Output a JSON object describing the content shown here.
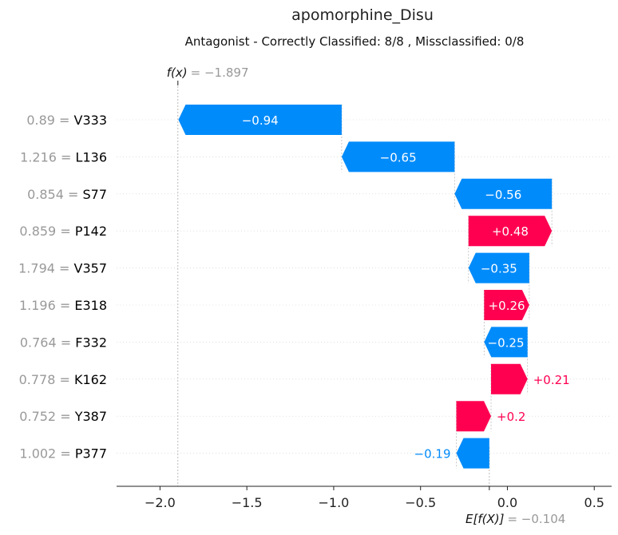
{
  "chart_data": {
    "type": "waterfall",
    "title": "apomorphine_Disu",
    "subtitle": "Antagonist - Correctly Classified: 8/8 , Missclassified: 0/8",
    "base_value": -0.104,
    "base_value_label": "= −0.104",
    "output_value": -1.897,
    "output_value_label": "= −1.897",
    "xlim": [
      -2.25,
      0.6
    ],
    "xticks": [
      -2.0,
      -1.5,
      -1.0,
      -0.5,
      0.0,
      0.5
    ],
    "xtick_labels": [
      "−2.0",
      "−1.5",
      "−1.0",
      "−0.5",
      "0.0",
      "0.5"
    ],
    "features": [
      {
        "value": "0.89",
        "name": "V333",
        "contribution": -0.94,
        "label": "−0.94"
      },
      {
        "value": "1.216",
        "name": "L136",
        "contribution": -0.65,
        "label": "−0.65"
      },
      {
        "value": "0.854",
        "name": "S77",
        "contribution": -0.56,
        "label": "−0.56"
      },
      {
        "value": "0.859",
        "name": "P142",
        "contribution": 0.48,
        "label": "+0.48"
      },
      {
        "value": "1.794",
        "name": "V357",
        "contribution": -0.35,
        "label": "−0.35"
      },
      {
        "value": "1.196",
        "name": "E318",
        "contribution": 0.26,
        "label": "+0.26"
      },
      {
        "value": "0.764",
        "name": "F332",
        "contribution": -0.25,
        "label": "−0.25"
      },
      {
        "value": "0.778",
        "name": "K162",
        "contribution": 0.21,
        "label": "+0.21"
      },
      {
        "value": "0.752",
        "name": "Y387",
        "contribution": 0.2,
        "label": "+0.2"
      },
      {
        "value": "1.002",
        "name": "P377",
        "contribution": -0.19,
        "label": "−0.19"
      }
    ],
    "colors": {
      "positive": "#ff0051",
      "negative": "#008bfb"
    }
  }
}
